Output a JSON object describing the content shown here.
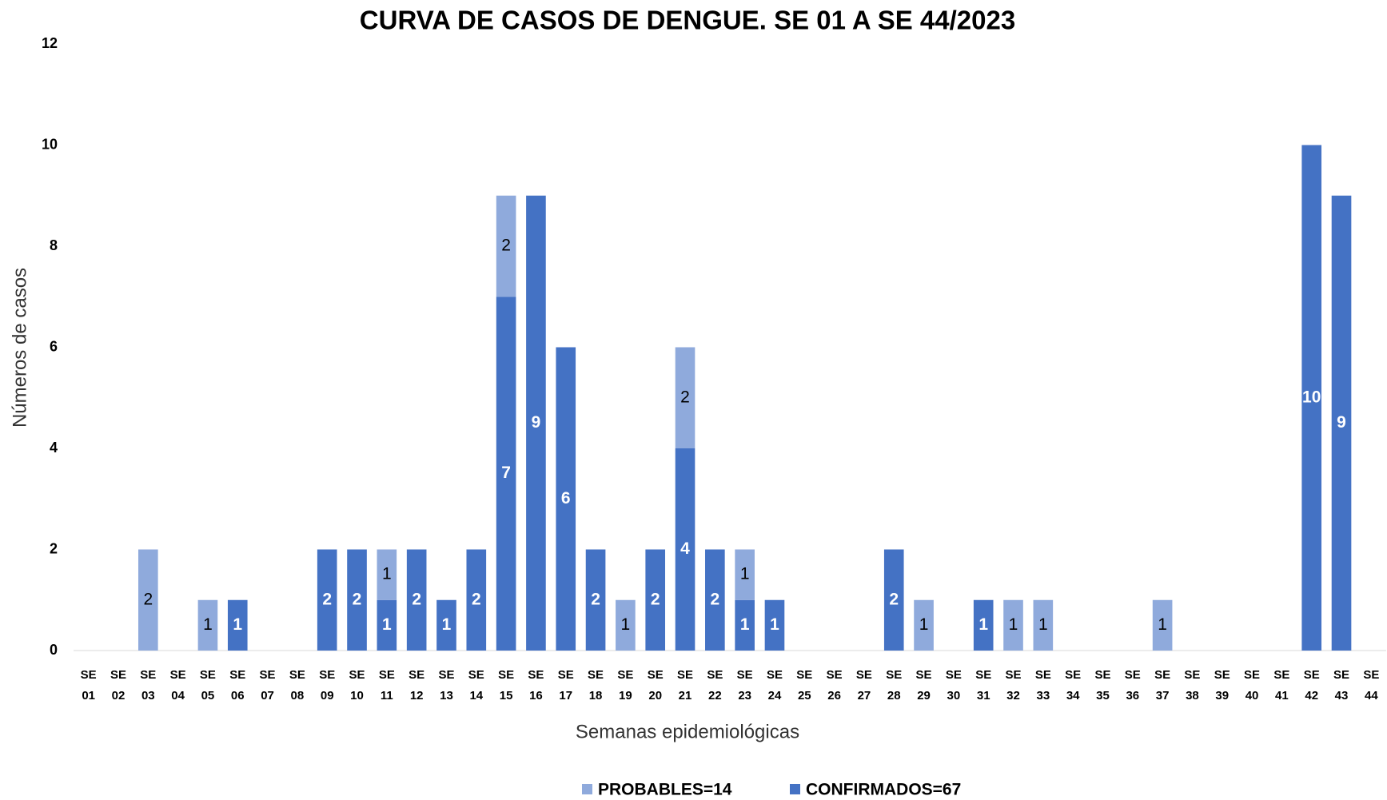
{
  "chart_data": {
    "type": "bar",
    "stacked": true,
    "title": "CURVA DE CASOS DE DENGUE. SE 01 A SE 44/2023",
    "x_label": "Semanas epidemiológicas",
    "y_label": "Números de casos",
    "categories": [
      "SE 01",
      "SE 02",
      "SE 03",
      "SE 04",
      "SE 05",
      "SE 06",
      "SE 07",
      "SE 08",
      "SE 09",
      "SE 10",
      "SE 11",
      "SE 12",
      "SE 13",
      "SE 14",
      "SE 15",
      "SE 16",
      "SE 17",
      "SE 18",
      "SE 19",
      "SE 20",
      "SE 21",
      "SE 22",
      "SE 23",
      "SE 24",
      "SE 25",
      "SE 26",
      "SE 27",
      "SE 28",
      "SE 29",
      "SE 30",
      "SE 31",
      "SE 32",
      "SE 33",
      "SE 34",
      "SE 35",
      "SE 36",
      "SE 37",
      "SE 38",
      "SE 39",
      "SE 40",
      "SE 41",
      "SE 42",
      "SE 43",
      "SE 44"
    ],
    "series": [
      {
        "name": "PROBABLES=14",
        "color": "#8faadc",
        "label_color": "#000000",
        "values": [
          0,
          0,
          2,
          0,
          1,
          0,
          0,
          0,
          0,
          0,
          1,
          0,
          0,
          0,
          2,
          0,
          0,
          0,
          1,
          0,
          2,
          0,
          1,
          0,
          0,
          0,
          0,
          0,
          1,
          0,
          0,
          1,
          1,
          0,
          0,
          0,
          1,
          0,
          0,
          0,
          0,
          0,
          0,
          0
        ]
      },
      {
        "name": "CONFIRMADOS=67",
        "color": "#4472c4",
        "label_color": "#ffffff",
        "values": [
          0,
          0,
          0,
          0,
          0,
          1,
          0,
          0,
          2,
          2,
          1,
          2,
          1,
          2,
          7,
          9,
          6,
          2,
          0,
          2,
          4,
          2,
          1,
          1,
          0,
          0,
          0,
          2,
          0,
          0,
          1,
          0,
          0,
          0,
          0,
          0,
          0,
          0,
          0,
          0,
          0,
          10,
          9,
          0
        ]
      }
    ],
    "stack_order": [
      1,
      0
    ],
    "ylim": [
      0,
      12
    ],
    "yticks": [
      0,
      2,
      4,
      6,
      8,
      10,
      12
    ],
    "grid": false,
    "legend": "bottom"
  }
}
